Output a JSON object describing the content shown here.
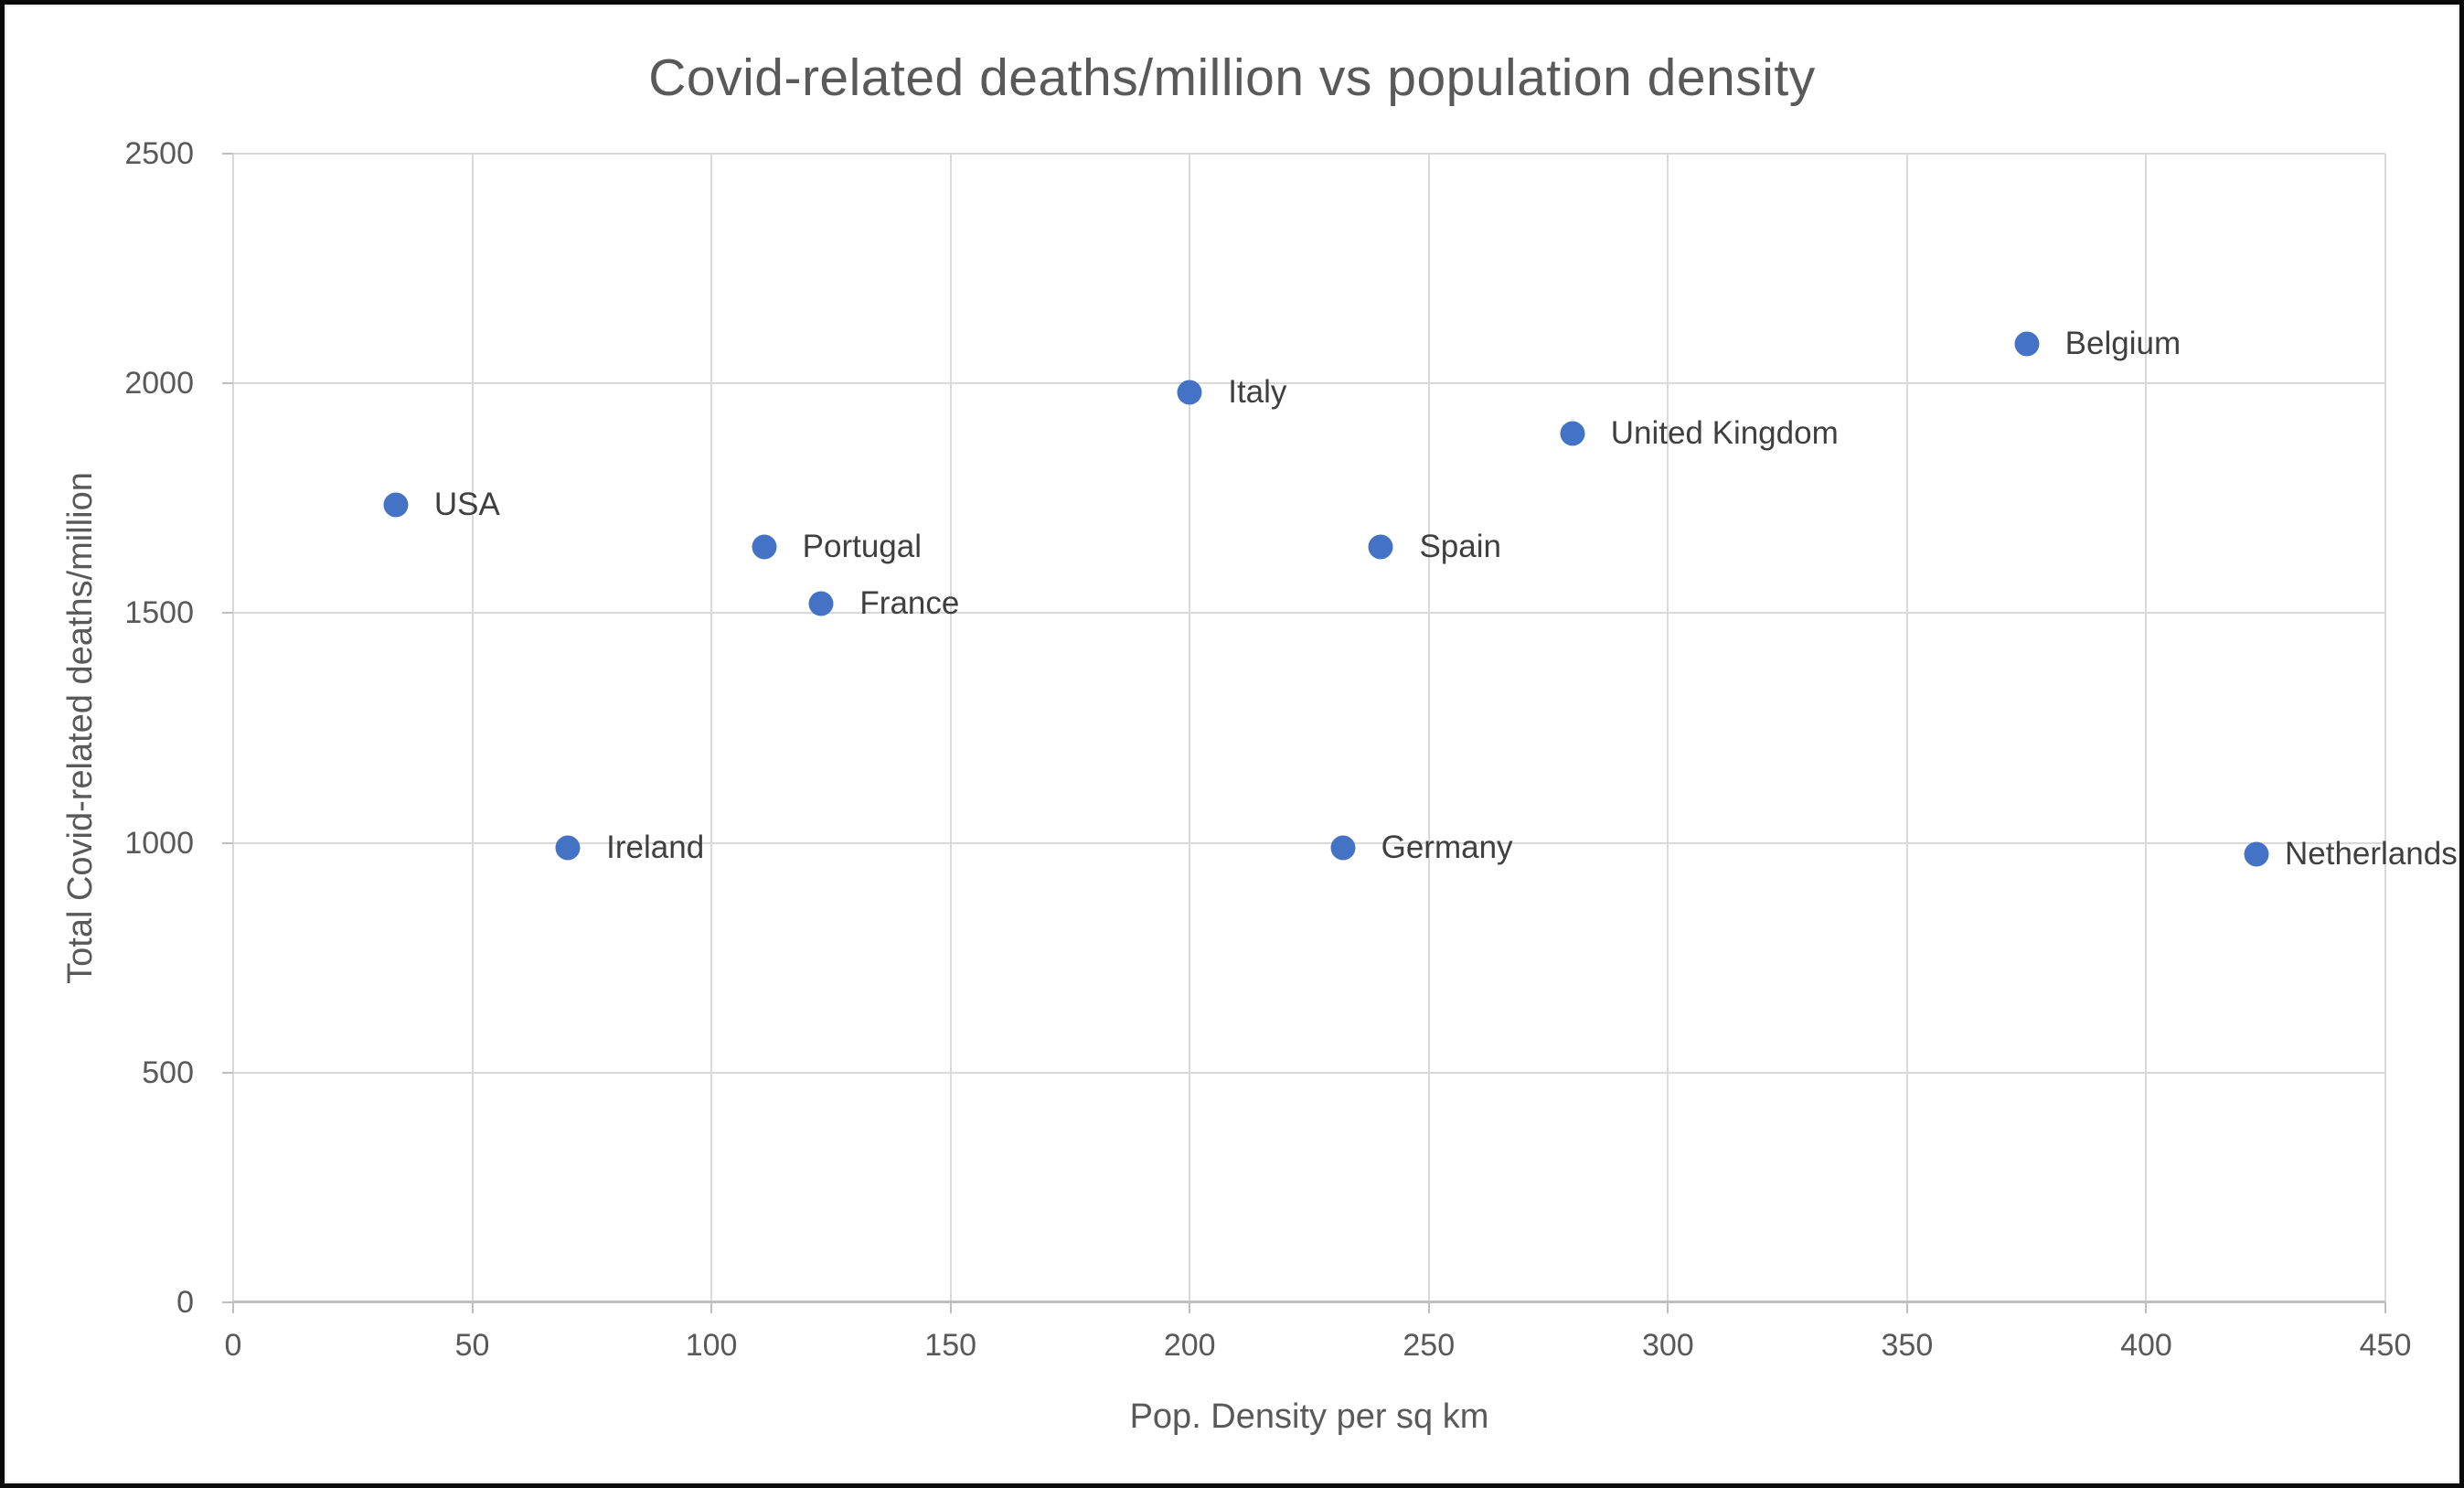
{
  "chart_data": {
    "type": "scatter",
    "title": "Covid-related deaths/million vs population density",
    "xlabel": "Pop. Density per sq km",
    "ylabel": "Total Covid-related deaths/million",
    "xlim": [
      0,
      450
    ],
    "ylim": [
      0,
      2500
    ],
    "xticks": [
      0,
      50,
      100,
      150,
      200,
      250,
      300,
      350,
      400,
      450
    ],
    "yticks": [
      0,
      500,
      1000,
      1500,
      2000,
      2500
    ],
    "grid": true,
    "legend_position": "none",
    "marker_color": "#4472C4",
    "grid_color": "#D9D9D9",
    "axis_color": "#BFBFBF",
    "tick_text_color": "#595959",
    "point_label_color": "#3F3F3F",
    "points": [
      {
        "label": "USA",
        "x": 34,
        "y": 1735
      },
      {
        "label": "Ireland",
        "x": 70,
        "y": 990
      },
      {
        "label": "Portugal",
        "x": 111,
        "y": 1645
      },
      {
        "label": "France",
        "x": 123,
        "y": 1520
      },
      {
        "label": "Italy",
        "x": 200,
        "y": 1980
      },
      {
        "label": "Germany",
        "x": 232,
        "y": 990
      },
      {
        "label": "Spain",
        "x": 240,
        "y": 1645
      },
      {
        "label": "United Kingdom",
        "x": 280,
        "y": 1890
      },
      {
        "label": "Belgium",
        "x": 375,
        "y": 2085
      },
      {
        "label": "Netherlands",
        "x": 423,
        "y": 975
      }
    ]
  }
}
